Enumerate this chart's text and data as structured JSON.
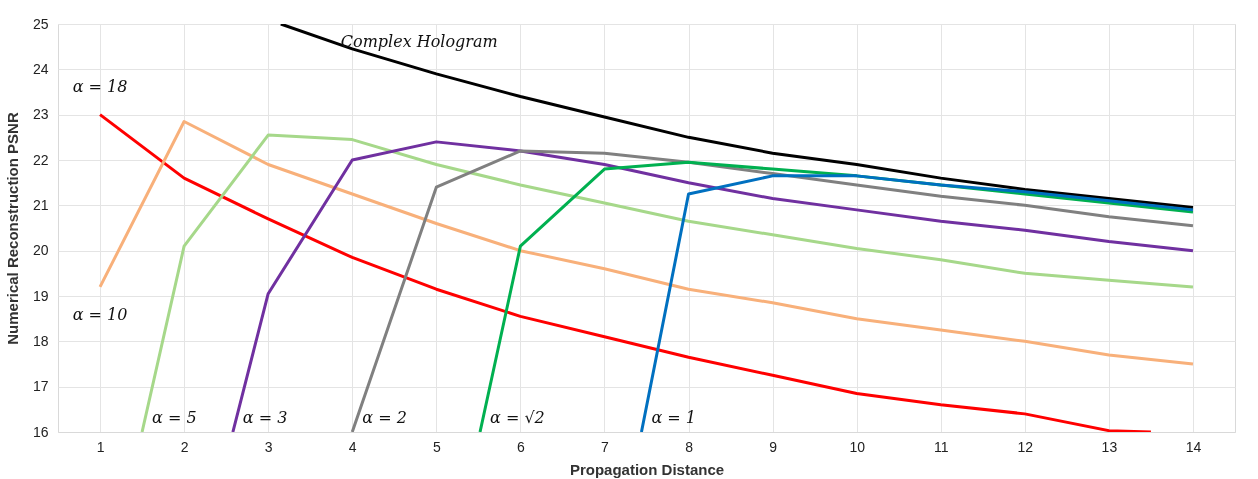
{
  "chart_data": {
    "type": "line",
    "xlabel": "Propagation Distance",
    "ylabel": "Numerical Reconstruction PSNR",
    "xlim": [
      0.5,
      14.5
    ],
    "xticks": [
      1,
      2,
      3,
      4,
      5,
      6,
      7,
      8,
      9,
      10,
      11,
      12,
      13,
      14
    ],
    "ylim": [
      16,
      25
    ],
    "yticks": [
      16,
      17,
      18,
      19,
      20,
      21,
      22,
      23,
      24,
      25
    ],
    "grid": true,
    "legend": false,
    "marker": "none",
    "line_style": "solid",
    "series": [
      {
        "name": "Complex Hologram",
        "color": "#000000",
        "x": [
          3.15,
          4,
          5,
          6,
          7,
          8,
          9,
          10,
          11,
          12,
          13,
          14
        ],
        "values": [
          25,
          24.45,
          23.9,
          23.4,
          22.95,
          22.5,
          22.15,
          21.9,
          21.6,
          21.35,
          21.15,
          20.95
        ]
      },
      {
        "name": "α = 18",
        "color": "#ff0000",
        "x": [
          1,
          2,
          3,
          4,
          5,
          6,
          7,
          8,
          9,
          10,
          11,
          12,
          13,
          13.5
        ],
        "values": [
          23.0,
          21.6,
          20.7,
          19.85,
          19.15,
          18.55,
          18.1,
          17.65,
          17.25,
          16.85,
          16.6,
          16.4,
          16.03,
          16
        ]
      },
      {
        "name": "α = 10",
        "color": "#f8b07a",
        "x": [
          1,
          2,
          3,
          4,
          5,
          6,
          7,
          8,
          9,
          10,
          11,
          12,
          13,
          14
        ],
        "values": [
          19.2,
          22.85,
          21.9,
          21.25,
          20.6,
          20.0,
          19.6,
          19.15,
          18.85,
          18.5,
          18.25,
          18.0,
          17.7,
          17.5
        ]
      },
      {
        "name": "α = 5",
        "color": "#a6d88a",
        "x": [
          1.5,
          2,
          3,
          4,
          5,
          6,
          7,
          8,
          9,
          10,
          11,
          12,
          13,
          14
        ],
        "values": [
          16,
          20.1,
          22.55,
          22.45,
          21.9,
          21.45,
          21.05,
          20.65,
          20.35,
          20.05,
          19.8,
          19.5,
          19.35,
          19.2
        ]
      },
      {
        "name": "α = 3",
        "color": "#7030a0",
        "x": [
          2.58,
          3,
          4,
          5,
          6,
          7,
          8,
          9,
          10,
          11,
          12,
          13,
          14
        ],
        "values": [
          16,
          19.05,
          22.0,
          22.4,
          22.2,
          21.9,
          21.5,
          21.15,
          20.9,
          20.65,
          20.45,
          20.2,
          20.0
        ]
      },
      {
        "name": "α = 2",
        "color": "#808080",
        "x": [
          4,
          5,
          6,
          7,
          8,
          9,
          10,
          11,
          12,
          13,
          14
        ],
        "values": [
          16,
          21.4,
          22.2,
          22.15,
          21.95,
          21.7,
          21.45,
          21.2,
          21.0,
          20.75,
          20.55
        ]
      },
      {
        "name": "α = √2",
        "color": "#00b050",
        "x": [
          5.52,
          6,
          7,
          8,
          9,
          10,
          11,
          12,
          13,
          14
        ],
        "values": [
          16,
          20.1,
          21.8,
          21.95,
          21.8,
          21.65,
          21.45,
          21.25,
          21.05,
          20.85
        ]
      },
      {
        "name": "α = 1",
        "color": "#0070c0",
        "x": [
          7.44,
          8,
          9,
          10,
          11,
          12,
          13,
          14
        ],
        "values": [
          16,
          21.25,
          21.65,
          21.65,
          21.45,
          21.3,
          21.1,
          20.9
        ]
      }
    ]
  }
}
